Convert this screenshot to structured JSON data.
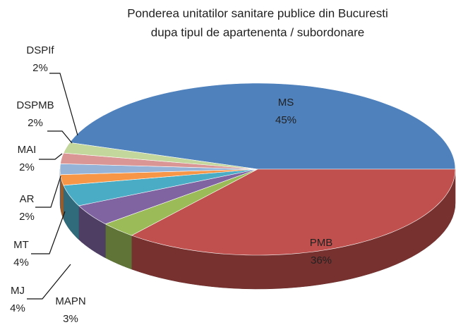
{
  "chart_data": {
    "type": "pie3d",
    "title": [
      "Ponderea  unitatilor sanitare publice din Bucuresti",
      "dupa tipul de apartenenta / subordonare"
    ],
    "categories": [
      "MS",
      "PMB",
      "MAPN",
      "MJ",
      "MT",
      "AR",
      "MAI",
      "DSPMB",
      "DSPIf"
    ],
    "values": [
      45,
      36,
      3,
      4,
      4,
      2,
      2,
      2,
      2
    ],
    "value_labels": [
      "45%",
      "36%",
      "3%",
      "4%",
      "4%",
      "2%",
      "2%",
      "2%",
      "2%"
    ],
    "colors": [
      "#4f81bd",
      "#c0504d",
      "#9bbb59",
      "#8064a2",
      "#4bacc6",
      "#f79646",
      "#95b3d7",
      "#d99694",
      "#c3d69b"
    ]
  }
}
